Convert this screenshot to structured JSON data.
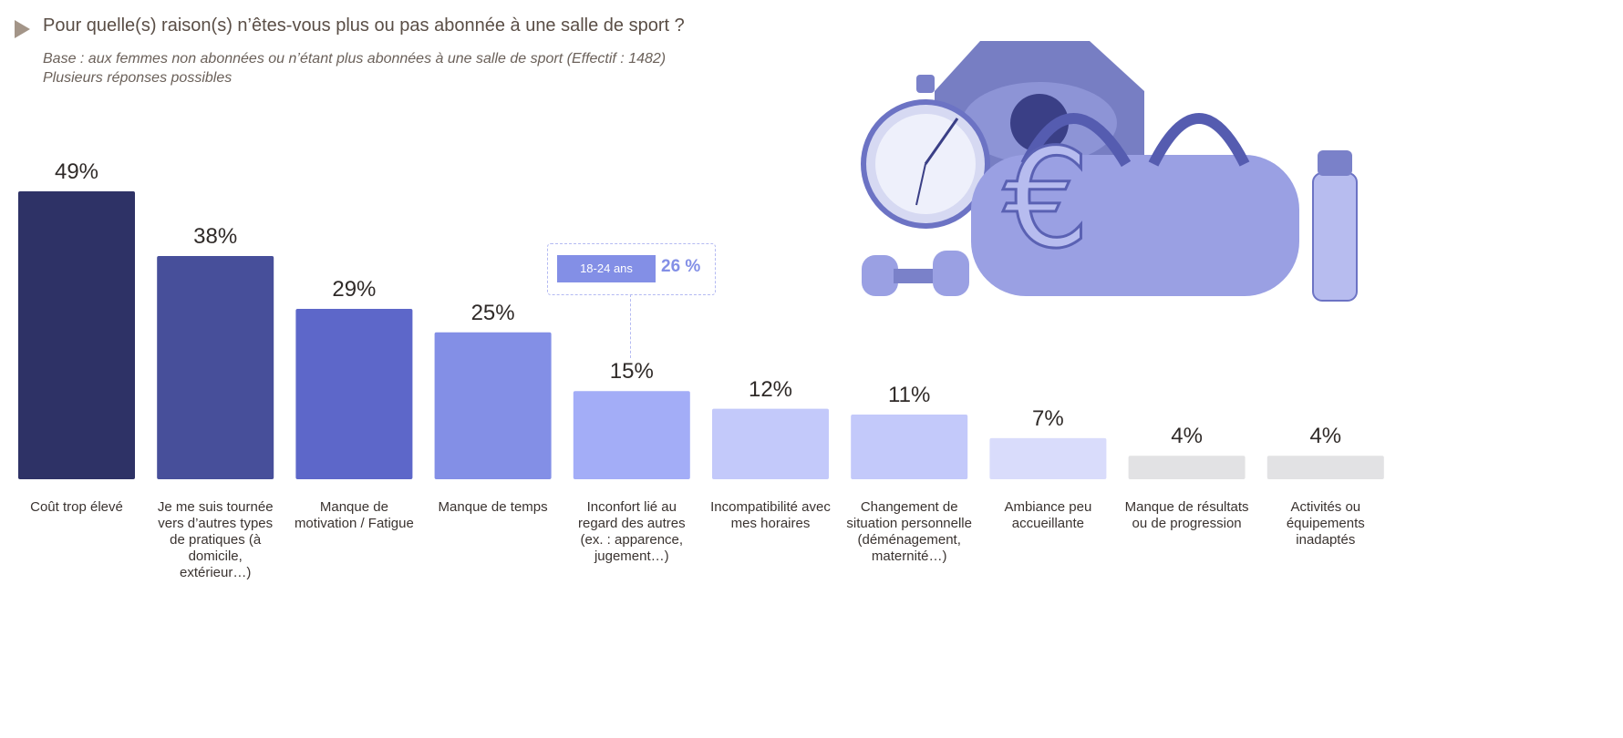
{
  "header": {
    "title": "Pour quelle(s) raison(s) n’êtes-vous plus ou pas abonnée à une salle de sport ?",
    "base": "Base : aux femmes non abonnées ou n’étant plus abonnées à une salle de sport (Effectif : 1482)",
    "note": "Plusieurs réponses possibles"
  },
  "callout": {
    "label": "18-24 ans",
    "value": "26 %",
    "attached_to": "Inconfort lié au regard des autres (ex. : apparence, jugement…)"
  },
  "chart_data": {
    "type": "bar",
    "title": "Pour quelle(s) raison(s) n’êtes-vous plus ou pas abonnée à une salle de sport ?",
    "xlabel": "",
    "ylabel": "",
    "ylim": [
      0,
      50
    ],
    "grid": false,
    "categories": [
      "Coût trop élevé",
      "Je me suis tournée vers d’autres types de pratiques (à domicile, extérieur…)",
      "Manque de motivation / Fatigue",
      "Manque de temps",
      "Inconfort lié au regard des autres (ex. : apparence, jugement…)",
      "Incompatibilité avec mes horaires",
      "Changement de situation personnelle (déménagement, maternité…)",
      "Ambiance peu accueillante",
      "Manque de résultats ou de progression",
      "Activités ou équipements inadaptés"
    ],
    "values": [
      49,
      38,
      29,
      25,
      15,
      12,
      11,
      7,
      4,
      4
    ],
    "value_labels": [
      "49%",
      "38%",
      "29%",
      "25%",
      "15%",
      "12%",
      "11%",
      "7%",
      "4%",
      "4%"
    ],
    "colors": [
      "#2e3266",
      "#474f9a",
      "#5d67c9",
      "#838fe6",
      "#a3adf7",
      "#c3c9fa",
      "#c3c9fa",
      "#d9dcfb",
      "#e2e2e4",
      "#e2e2e4"
    ]
  }
}
